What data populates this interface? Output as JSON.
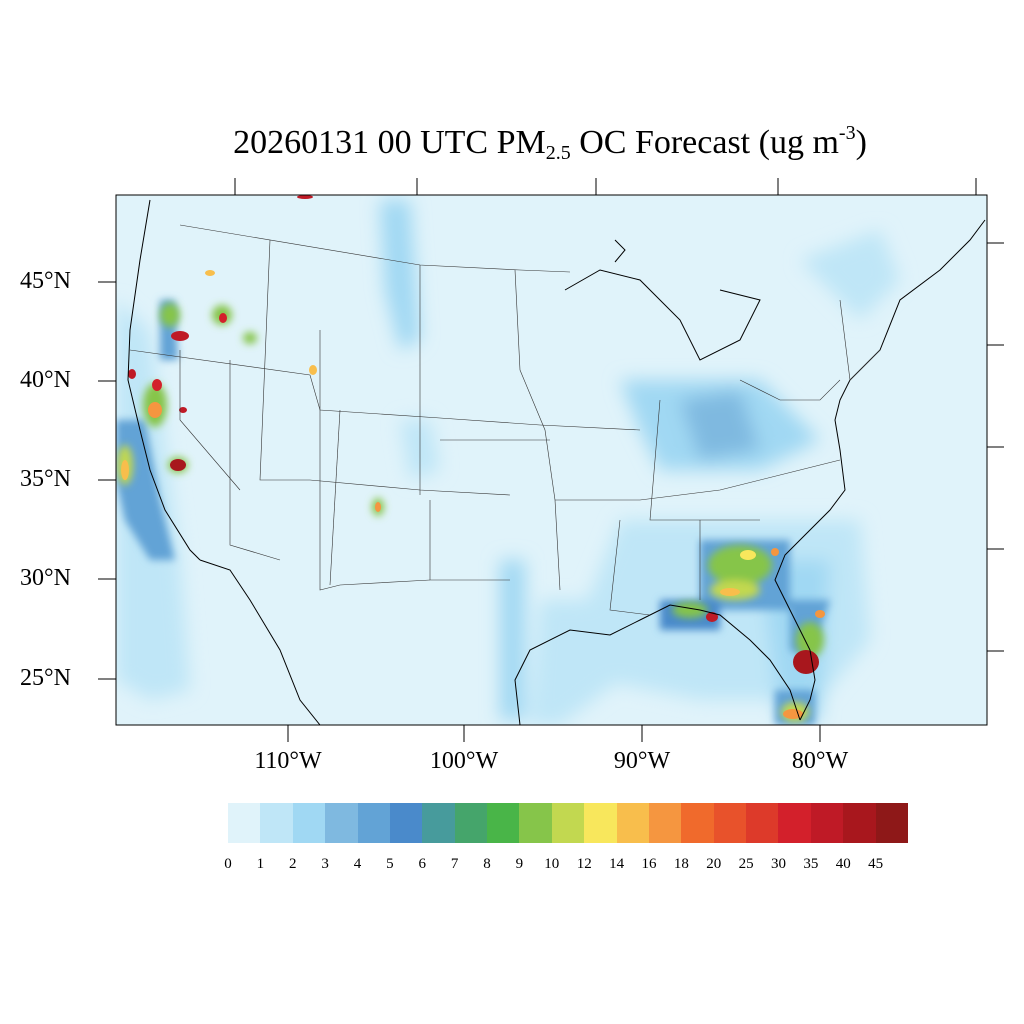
{
  "title": {
    "prefix": "20260131 00 UTC PM",
    "sub": "2.5",
    "middle": " OC Forecast (ug m",
    "sup": "-3",
    "suffix": ")"
  },
  "lat_labels": [
    "45°N",
    "40°N",
    "35°N",
    "30°N",
    "25°N"
  ],
  "lon_labels": [
    "110°W",
    "100°W",
    "90°W",
    "80°W"
  ],
  "legend": {
    "labels": [
      "0",
      "1",
      "2",
      "3",
      "4",
      "5",
      "6",
      "7",
      "8",
      "9",
      "10",
      "12",
      "14",
      "16",
      "18",
      "20",
      "25",
      "30",
      "35",
      "40",
      "45"
    ],
    "colors": [
      "#e0f3fa",
      "#bfe6f7",
      "#a0d8f3",
      "#7fb9e0",
      "#62a3d6",
      "#4a8acb",
      "#479b9c",
      "#45a56b",
      "#49b548",
      "#86c54a",
      "#c2d850",
      "#f8e75c",
      "#f8be4c",
      "#f59640",
      "#f06a2c",
      "#e8522b",
      "#dd3a2a",
      "#d3202b",
      "#bf1a26",
      "#a8171d",
      "#8e1818"
    ]
  },
  "map": {
    "background_color": "#e0f3fa",
    "hotspots": [
      {
        "name": "N California coast",
        "level": "35-45"
      },
      {
        "name": "Central California",
        "level": "25-45"
      },
      {
        "name": "Oregon",
        "level": "20-45"
      },
      {
        "name": "N Idaho",
        "level": "20-30"
      },
      {
        "name": "New Mexico",
        "level": "10-16"
      },
      {
        "name": "Georgia",
        "level": "12-20"
      },
      {
        "name": "Florida panhandle",
        "level": "20-45"
      },
      {
        "name": "S Florida",
        "level": "30-45"
      }
    ]
  }
}
